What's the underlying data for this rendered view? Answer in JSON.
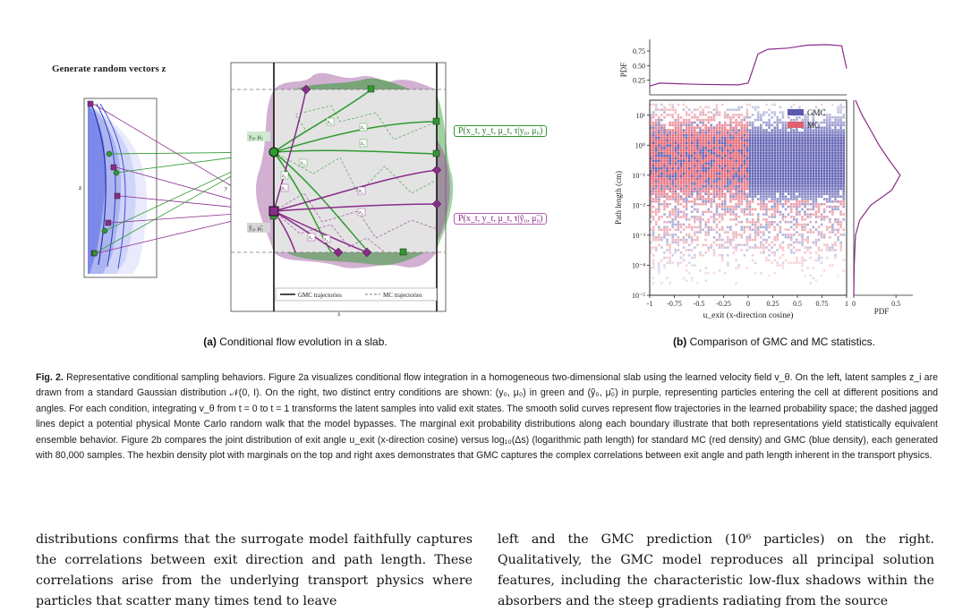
{
  "panel_a": {
    "generate_label": "Generate random vectors z",
    "z_axis_label": "z",
    "x_axis_label": "x",
    "y_axis_label": "y",
    "entry_green": "y₀, μ₀",
    "entry_purple": "ỹ₀, μ̃₀",
    "dist_green": "P(x_t, y_t, μ_t, τ|y₀, μ₀)",
    "dist_purple": "P(x_t, y_t, μ_t, τ|ỹ₀, μ̃₀)",
    "legend_gmc": "GMC trajectories",
    "legend_mc": "MC trajectories",
    "z_labels": [
      "z₃",
      "z₅",
      "z₃",
      "z₄",
      "z₂",
      "z₂",
      "z₁",
      "z₂",
      "z₁",
      "z₂",
      "z₃",
      "z₅",
      "z₄"
    ],
    "colors": {
      "green": "#2e9a2e",
      "purple": "#8a2a8a",
      "blue": "#3b4fd8"
    }
  },
  "panel_b": {
    "legend": [
      {
        "label": "GMC",
        "color": "#5a5ab0"
      },
      {
        "label": "MC",
        "color": "#e06070"
      }
    ],
    "top_marginal_ylabel": "PDF",
    "top_yticks": [
      "0.75",
      "0.50",
      "0.25"
    ],
    "main_ylabel": "Path length (cm)",
    "main_yticks": [
      "10¹",
      "10⁰",
      "10⁻¹",
      "10⁻²",
      "10⁻³",
      "10⁻⁴",
      "10⁻⁵"
    ],
    "main_xticks": [
      "-1",
      "-0.75",
      "-0.5",
      "-0.25",
      "0",
      "0.25",
      "0.5",
      "0.75",
      "1"
    ],
    "main_xlabel": "u_exit (x-direction cosine)",
    "right_xticks": [
      "0",
      "0.5"
    ],
    "right_xlabel": "PDF"
  },
  "chart_data": {
    "type": "heatmap",
    "x_variable": "u_exit (x-direction cosine)",
    "y_variable": "Path length (cm)",
    "xlim": [
      -1,
      1
    ],
    "ylim_log10": [
      -5,
      1.5
    ],
    "y_scale": "log",
    "series": [
      {
        "name": "GMC",
        "color": "#5a5ab0"
      },
      {
        "name": "MC",
        "color": "#e06070"
      }
    ],
    "top_marginal": {
      "ylabel": "PDF",
      "x": [
        -1,
        -0.9,
        -0.5,
        -0.1,
        0,
        0.1,
        0.2,
        0.4,
        0.6,
        0.8,
        0.95,
        1
      ],
      "pdf": [
        0.15,
        0.2,
        0.18,
        0.17,
        0.2,
        0.7,
        0.78,
        0.8,
        0.85,
        0.86,
        0.84,
        0.45
      ]
    },
    "right_marginal": {
      "xlabel": "PDF",
      "log10_path_length": [
        1.5,
        1,
        0.5,
        0,
        -0.5,
        -1,
        -1.5,
        -2,
        -2.5,
        -3,
        -4,
        -5
      ],
      "pdf": [
        0.02,
        0.1,
        0.2,
        0.3,
        0.42,
        0.55,
        0.45,
        0.2,
        0.07,
        0.02,
        0.005,
        0.0
      ]
    }
  },
  "captions": {
    "a_label": "(a)",
    "a_text": "Conditional flow evolution in a slab.",
    "b_label": "(b)",
    "b_text": "Comparison of GMC and MC statistics."
  },
  "fig_caption": {
    "label": "Fig. 2.",
    "text": "Representative conditional sampling behaviors. Figure 2a visualizes conditional flow integration in a homogeneous two-dimensional slab using the learned velocity field v_θ. On the left, latent samples z_i are drawn from a standard Gaussian distribution 𝒩(0, I). On the right, two distinct entry conditions are shown: (y₀, μ₀) in green and (ỹ₀, μ̃₀) in purple, representing particles entering the cell at different positions and angles. For each condition, integrating v_θ from t = 0 to t = 1 transforms the latent samples into valid exit states. The smooth solid curves represent flow trajectories in the learned probability space; the dashed jagged lines depict a potential physical Monte Carlo random walk that the model bypasses. The marginal exit probability distributions along each boundary illustrate that both representations yield statistically equivalent ensemble behavior. Figure 2b compares the joint distribution of exit angle u_exit (x-direction cosine) versus log₁₀(Δs) (logarithmic path length) for standard MC (red density) and GMC (blue density), each generated with 80,000 samples. The hexbin density plot with marginals on the top and right axes demonstrates that GMC captures the complex correlations between exit angle and path length inherent in the transport physics."
  },
  "body": {
    "left": "distributions confirms that the surrogate model faithfully captures the correlations between exit direction and path length. These correlations arise from the underlying transport physics where particles that scatter many times tend to leave",
    "right": "left and the GMC prediction (10⁶ particles) on the right. Qualitatively, the GMC model reproduces all principal solution features, including the characteristic low-flux shadows within the absorbers and the steep gradients radiating from the source"
  }
}
